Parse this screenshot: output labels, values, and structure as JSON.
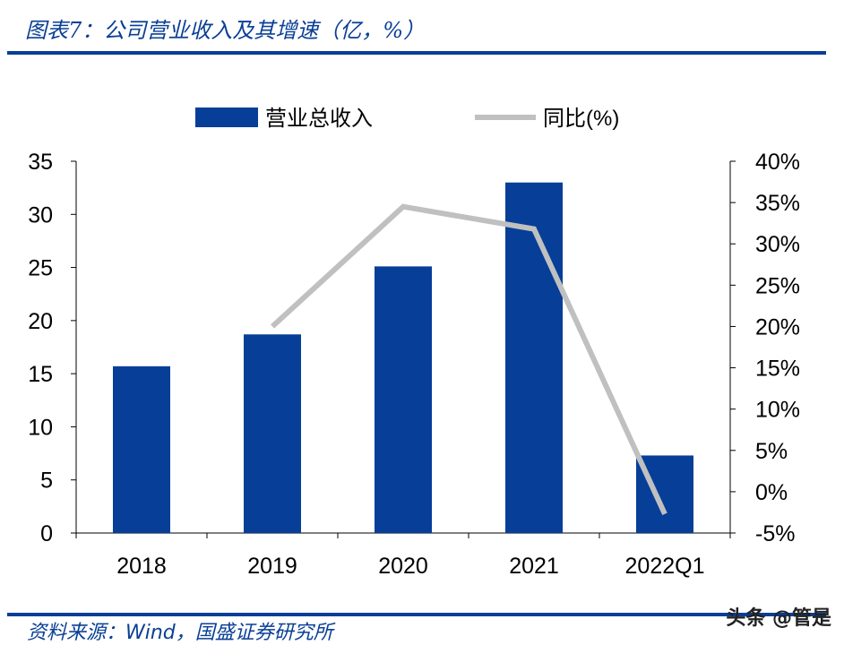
{
  "title": "图表7：公司营业收入及其增速（亿，%）",
  "source": "资料来源：Wind，国盛证券研究所",
  "watermark": "头条 @管是",
  "chart_data": {
    "type": "bar+line",
    "categories": [
      "2018",
      "2019",
      "2020",
      "2021",
      "2022Q1"
    ],
    "series": [
      {
        "name": "营业总收入",
        "type": "bar",
        "axis": "left",
        "color": "#063e98",
        "values": [
          15.7,
          18.7,
          25.1,
          33.0,
          7.3
        ]
      },
      {
        "name": "同比(%)",
        "type": "line",
        "axis": "right",
        "color": "#c0c0c0",
        "values": [
          null,
          20.0,
          34.5,
          31.8,
          -2.7
        ]
      }
    ],
    "left_axis": {
      "ylim": [
        0,
        35
      ],
      "ticks": [
        "0",
        "5",
        "10",
        "15",
        "20",
        "25",
        "30",
        "35"
      ]
    },
    "right_axis": {
      "ylim": [
        -5,
        40
      ],
      "ticks": [
        "-5%",
        "0%",
        "5%",
        "10%",
        "15%",
        "20%",
        "25%",
        "30%",
        "35%",
        "40%"
      ]
    },
    "legend": "top",
    "grid": false
  }
}
